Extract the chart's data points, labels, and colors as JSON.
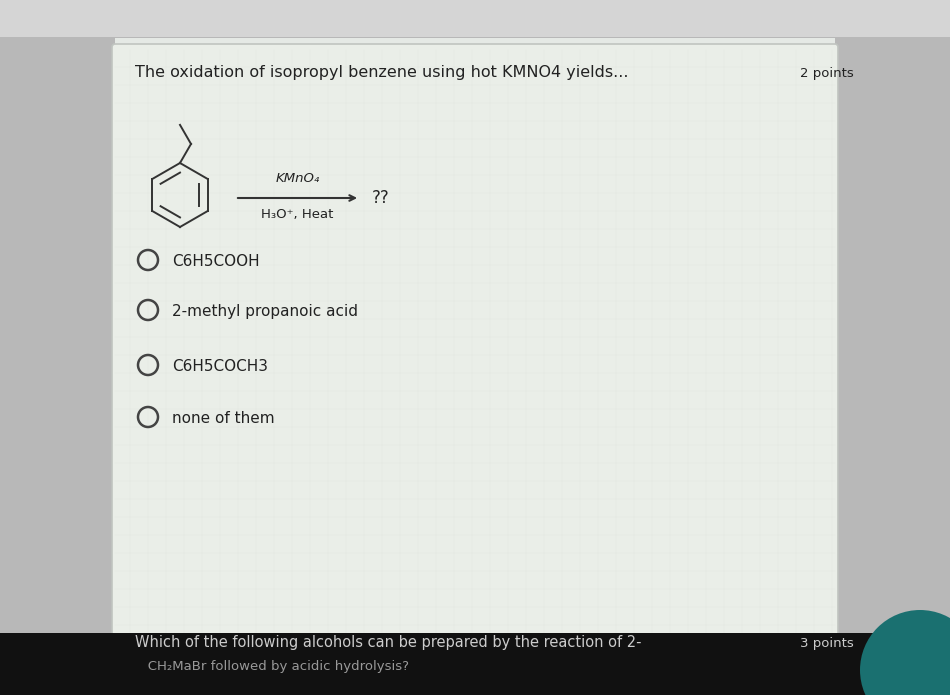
{
  "bg_outer": "#b8b8b8",
  "bg_card": "#e8ece8",
  "title": "The oxidation of isopropyl benzene using hot KMNO4 yields...",
  "points_label": "2 points",
  "points_label2": "3 points",
  "reagent_above": "KMnO₄",
  "reagent_below": "H₃O⁺, Heat",
  "arrow_label": "??",
  "options": [
    "C6H5COOH",
    "2-methyl propanoic acid",
    "C6H5COCH3",
    "none of them"
  ],
  "bottom_text": "Which of the following alcohols can be prepared by the reaction of 2-",
  "bottom_text2": "   CH₂MaBr followed by acidic hydrolysis?",
  "text_color": "#222222",
  "title_fontsize": 11.5,
  "option_fontsize": 11,
  "reagent_fontsize": 9.5
}
